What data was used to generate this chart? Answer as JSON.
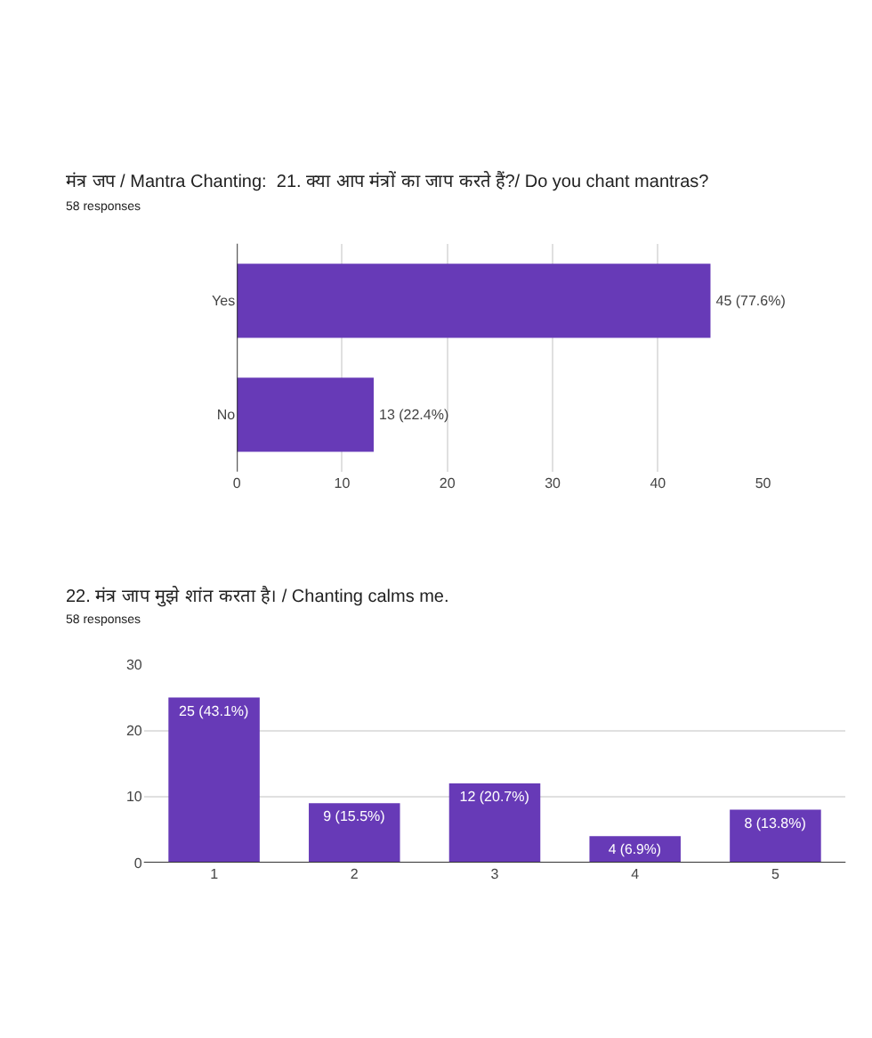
{
  "chart_data": [
    {
      "type": "bar",
      "orientation": "horizontal",
      "title": "मंत्र जप / Mantra Chanting:  21. क्या आप मंत्रों का जाप करते हैं?/ Do you chant mantras?",
      "subtitle": "58 responses",
      "categories": [
        "Yes",
        "No"
      ],
      "values": [
        45,
        13
      ],
      "value_labels": [
        "45 (77.6%)",
        "13 (22.4%)"
      ],
      "color": "#673ab7",
      "xlim": [
        0,
        50
      ],
      "xticks": [
        0,
        10,
        20,
        30,
        40,
        50
      ],
      "grid": "x",
      "legend": false
    },
    {
      "type": "bar",
      "title": "22. मंत्र जाप मुझे शांत करता है। / Chanting calms me.",
      "subtitle": "58 responses",
      "categories": [
        "1",
        "2",
        "3",
        "4",
        "5"
      ],
      "values": [
        25,
        9,
        12,
        4,
        8
      ],
      "value_labels": [
        "25 (43.1%)",
        "9 (15.5%)",
        "12 (20.7%)",
        "4 (6.9%)",
        "8 (13.8%)"
      ],
      "color": "#673ab7",
      "ylim": [
        0,
        30
      ],
      "yticks": [
        0,
        10,
        20,
        30
      ],
      "grid": "y",
      "legend": false
    }
  ]
}
